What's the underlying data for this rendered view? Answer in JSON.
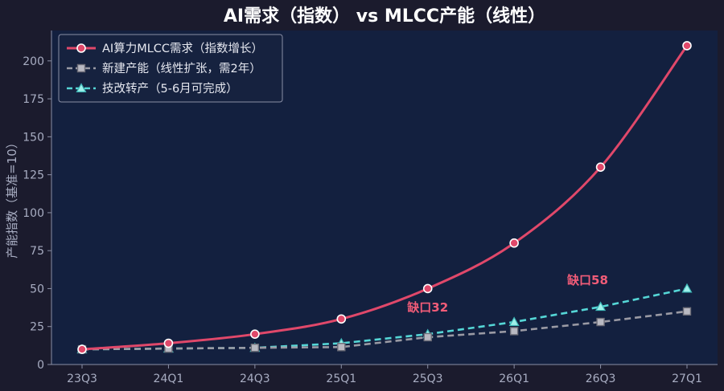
{
  "chart_data": {
    "type": "line",
    "title": "AI需求（指数） vs MLCC产能（线性）",
    "ylabel": "产能指数（基准=10）",
    "xlabel": "",
    "categories": [
      "23Q3",
      "24Q1",
      "24Q3",
      "25Q1",
      "25Q3",
      "26Q1",
      "26Q3",
      "27Q1"
    ],
    "ylim": [
      0,
      220
    ],
    "yticks": [
      0,
      25,
      50,
      75,
      100,
      125,
      150,
      175,
      200
    ],
    "grid": false,
    "legend_position": "top-left",
    "series": [
      {
        "name": "AI算力MLCC需求（指数增长）",
        "values": [
          10,
          14,
          20,
          30,
          50,
          80,
          130,
          210
        ],
        "color": "#e0486a",
        "marker": "circle",
        "line_style": "solid"
      },
      {
        "name": "新建产能（线性扩张，需2年）",
        "values": [
          10,
          10.5,
          11,
          11.5,
          18,
          22,
          28,
          35
        ],
        "color": "#9a9aa4",
        "marker": "square",
        "line_style": "dashed"
      },
      {
        "name": "技改转产（5-6月可完成）",
        "values": [
          10,
          10.5,
          11,
          14,
          20,
          28,
          38,
          50
        ],
        "color": "#55d6d6",
        "marker": "triangle",
        "line_style": "dashed"
      }
    ],
    "annotations": [
      {
        "text": "缺口32",
        "x": 4,
        "y": 35
      },
      {
        "text": "缺口58",
        "x": 5.85,
        "y": 53
      }
    ]
  },
  "colors": {
    "page_background": "#1b1b2d",
    "plot_background": "#13203f",
    "axis": "#8a8fa6",
    "annotation": "#f25c78"
  }
}
